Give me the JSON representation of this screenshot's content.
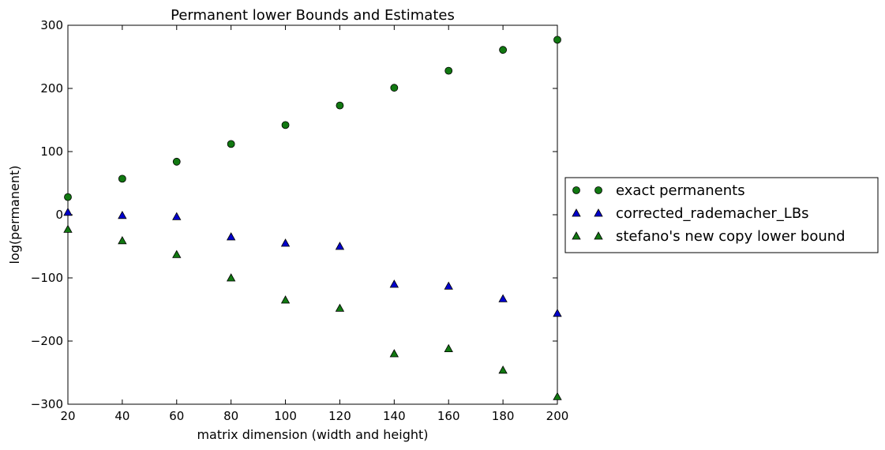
{
  "chart_data": {
    "type": "scatter",
    "title": "Permanent lower Bounds and Estimates",
    "xlabel": "matrix dimension (width and height)",
    "ylabel": "log(permanent)",
    "xlim": [
      20,
      200
    ],
    "ylim": [
      -300,
      300
    ],
    "xticks": [
      "20",
      "40",
      "60",
      "80",
      "100",
      "120",
      "140",
      "160",
      "180",
      "200"
    ],
    "yticks": [
      "300",
      "200",
      "100",
      "0",
      "−100",
      "−200",
      "−300"
    ],
    "grid": false,
    "legend_position": "outside-right",
    "series": [
      {
        "name": "exact permanents",
        "marker": "circle",
        "color": "#117811",
        "x": [
          20,
          40,
          60,
          80,
          100,
          120,
          140,
          160,
          180,
          200
        ],
        "y": [
          28,
          57,
          84,
          112,
          142,
          173,
          201,
          228,
          261,
          277
        ]
      },
      {
        "name": "corrected_rademacher_LBs",
        "marker": "triangle",
        "color": "#0000cc",
        "x": [
          20,
          40,
          60,
          80,
          100,
          120,
          140,
          160,
          180,
          200
        ],
        "y": [
          4,
          -1,
          -3,
          -35,
          -45,
          -50,
          -110,
          -113,
          -133,
          -156
        ]
      },
      {
        "name": "stefano's new copy lower bound",
        "marker": "triangle",
        "color": "#117811",
        "x": [
          20,
          40,
          60,
          80,
          100,
          120,
          140,
          160,
          180,
          200
        ],
        "y": [
          -23,
          -41,
          -63,
          -100,
          -135,
          -148,
          -220,
          -212,
          -246,
          -288
        ]
      }
    ]
  }
}
